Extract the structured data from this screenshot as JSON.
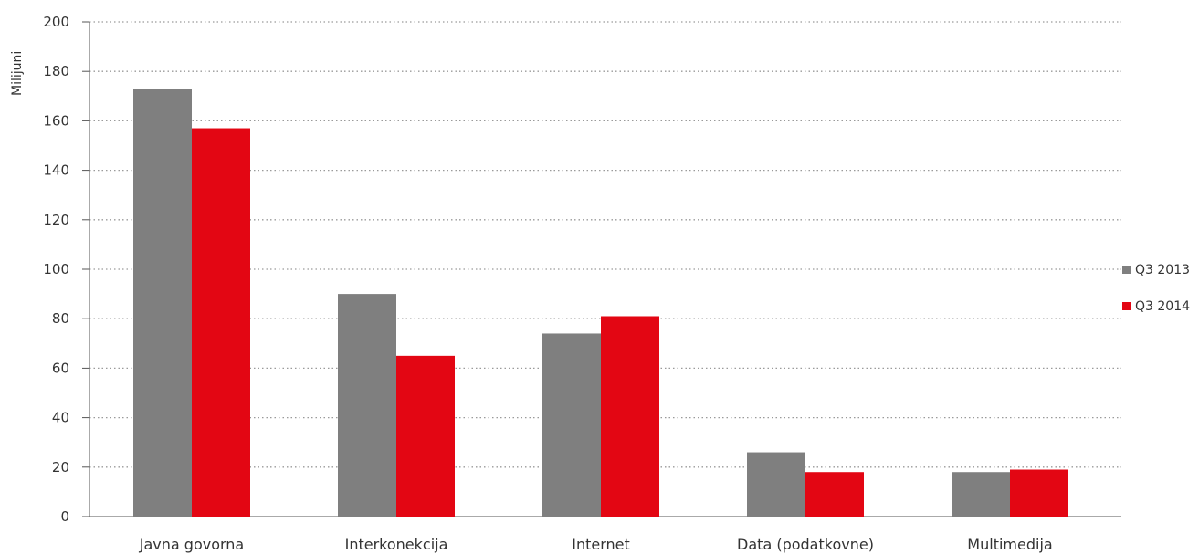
{
  "chart_data": {
    "type": "bar",
    "categories": [
      "Javna govorna",
      "Interkonekcija",
      "Internet",
      "Data (podatkovne)",
      "Multimedija"
    ],
    "series": [
      {
        "name": "Q3 2013",
        "values": [
          173,
          90,
          74,
          26,
          18
        ],
        "color": "#7f7f7f"
      },
      {
        "name": "Q3 2014",
        "values": [
          157,
          65,
          81,
          18,
          19
        ],
        "color": "#e30613"
      }
    ],
    "ylabel": "Milijuni",
    "ylim": [
      0,
      200
    ],
    "yticks": [
      0,
      20,
      40,
      60,
      80,
      100,
      120,
      140,
      160,
      180,
      200
    ],
    "grid": true,
    "legend": "right"
  }
}
